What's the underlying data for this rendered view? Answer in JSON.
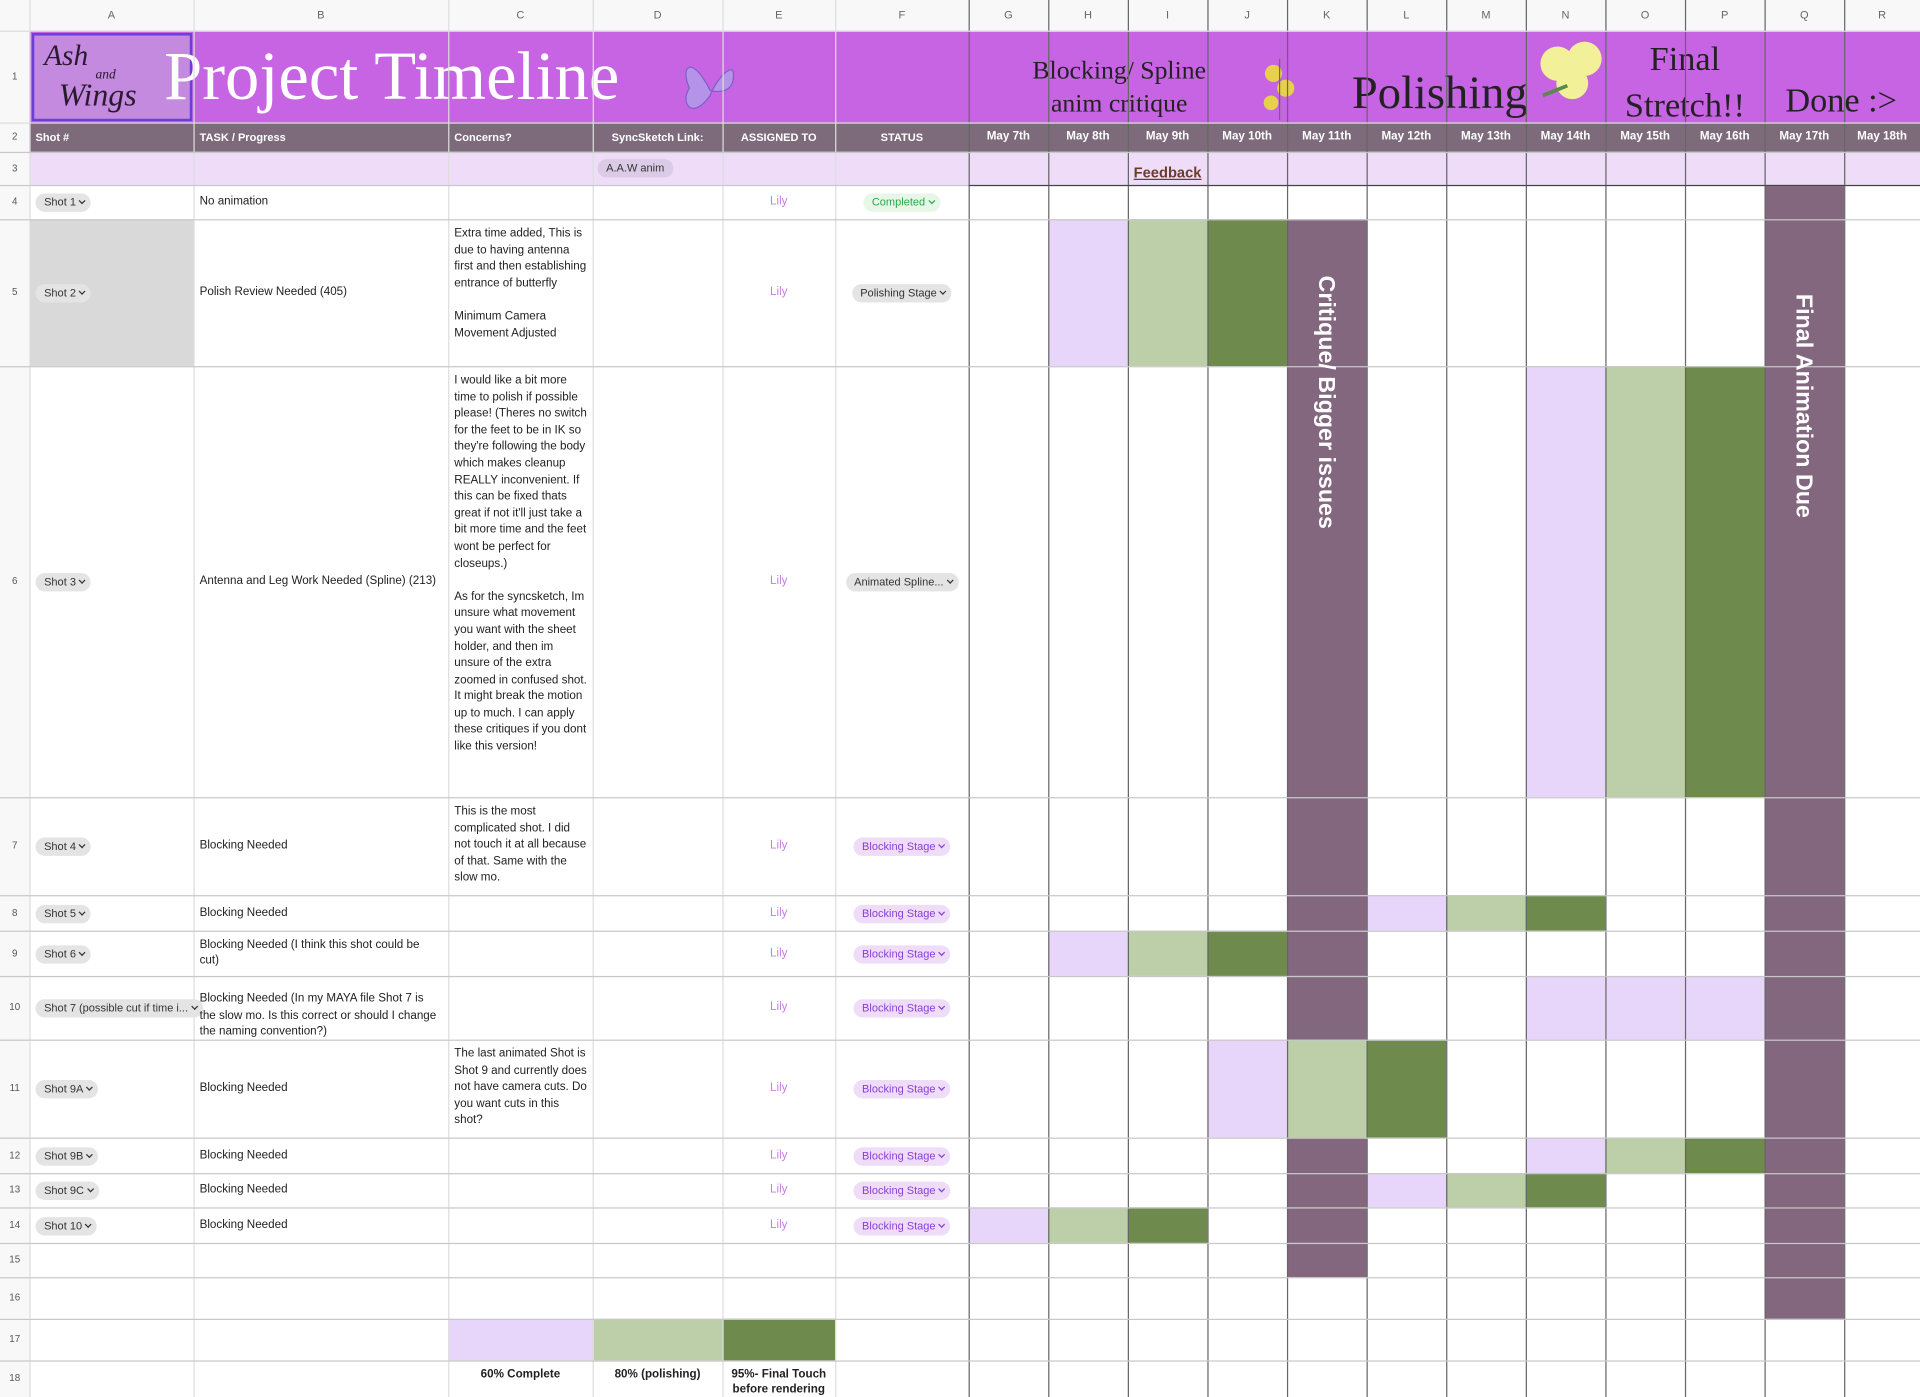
{
  "column_letters": [
    "A",
    "B",
    "C",
    "D",
    "E",
    "F",
    "G",
    "H",
    "I",
    "J",
    "K",
    "L",
    "M",
    "N",
    "O",
    "P",
    "Q",
    "R"
  ],
  "row_numbers": [
    1,
    2,
    3,
    4,
    5,
    6,
    7,
    8,
    9,
    10,
    11,
    12,
    13,
    14,
    15,
    16,
    17,
    18
  ],
  "header": {
    "logo": [
      "Ash",
      "and",
      "Wings"
    ],
    "title": "Project Timeline",
    "phases": [
      "Blocking/ Spline\nanim critique",
      "Polishing",
      "Final\nStretch!!",
      "Done :>"
    ]
  },
  "columns": [
    "Shot #",
    "TASK / Progress",
    "Concerns?",
    "SyncSketch Link:",
    "ASSIGNED TO",
    "STATUS",
    "May 7th",
    "May 8th",
    "May 9th",
    "May 10th",
    "May 11th",
    "May 12th",
    "May 13th",
    "May 14th",
    "May 15th",
    "May 16th",
    "May 17th",
    "May 18th"
  ],
  "row3": {
    "sync_link": "A.A.W anim",
    "feedback": "Feedback"
  },
  "shots": [
    {
      "shot": "Shot 1",
      "task": "No animation",
      "assigned": "Lily",
      "status": "Completed"
    },
    {
      "shot": "Shot 2",
      "task": "Polish Review Needed (405)",
      "concerns": "Extra time added, This is due to having antenna first and then establishing entrance of butterfly\n\nMinimum Camera Movement Adjusted",
      "assigned": "Lily",
      "status": "Polishing Stage"
    },
    {
      "shot": "Shot 3",
      "task": "Antenna and Leg Work Needed (Spline) (213)",
      "concerns": "I would like a bit more time to polish if possible please! (Theres no switch for the feet to be in IK so they're following the body which makes cleanup REALLY inconvenient. If this can be fixed thats great if not it'll just take a bit more time and the feet wont be perfect for closeups.)\n\nAs for the syncsketch, Im unsure what movement you want with the sheet holder, and then im unsure of the extra zoomed in confused shot. It might break the motion up to much. I can apply these critiques if you dont like this version!",
      "assigned": "Lily",
      "status": "Animated Spline..."
    },
    {
      "shot": "Shot 4",
      "task": "Blocking Needed",
      "concerns": "This is the most complicated shot. I did not touch it at all because of that. Same with the slow mo.",
      "assigned": "Lily",
      "status": "Blocking Stage"
    },
    {
      "shot": "Shot 5",
      "task": "Blocking Needed",
      "assigned": "Lily",
      "status": "Blocking Stage"
    },
    {
      "shot": "Shot 6",
      "task": "Blocking Needed (I think this shot could be cut)",
      "assigned": "Lily",
      "status": "Blocking Stage"
    },
    {
      "shot": "Shot 7 (possible cut if time i...",
      "task": "Blocking Needed (In my MAYA file Shot 7 is the slow mo. Is this correct or should I change the naming convention?)",
      "assigned": "Lily",
      "status": "Blocking Stage"
    },
    {
      "shot": "Shot 9A",
      "task": "Blocking Needed",
      "concerns": "The last animated Shot is Shot 9 and currently does not have camera cuts. Do you want cuts in this shot?",
      "assigned": "Lily",
      "status": "Blocking Stage"
    },
    {
      "shot": "Shot 9B",
      "task": "Blocking Needed",
      "assigned": "Lily",
      "status": "Blocking Stage"
    },
    {
      "shot": "Shot 9C",
      "task": "Blocking Needed",
      "assigned": "Lily",
      "status": "Blocking Stage"
    },
    {
      "shot": "Shot 10",
      "task": "Blocking Needed",
      "assigned": "Lily",
      "status": "Blocking Stage"
    }
  ],
  "annotations": [
    "Critique/ Bigger issues",
    "Final Animation Due"
  ],
  "legend": [
    "60% Complete",
    "80% (polishing)",
    "95%- Final Touch before rendering"
  ]
}
